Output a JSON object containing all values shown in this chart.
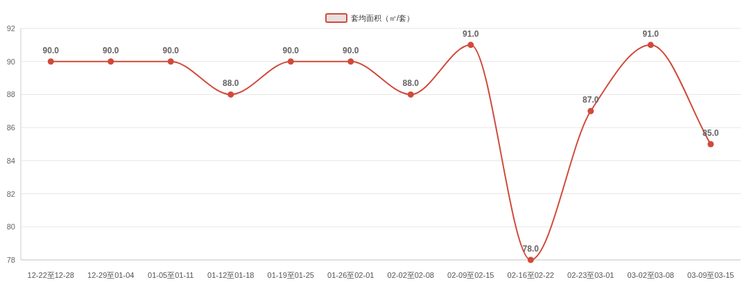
{
  "chart_data": {
    "type": "line",
    "categories": [
      "12-22至12-28",
      "12-29至01-04",
      "01-05至01-11",
      "01-12至01-18",
      "01-19至01-25",
      "01-26至02-01",
      "02-02至02-08",
      "02-09至02-15",
      "02-16至02-22",
      "02-23至03-01",
      "03-02至03-08",
      "03-09至03-15"
    ],
    "series": [
      {
        "name": "套均面积（㎡/套）",
        "color": "#d04a3b",
        "values": [
          90,
          90,
          90,
          88,
          90,
          90,
          88,
          91,
          78,
          87,
          91,
          85
        ],
        "value_labels": [
          "90.0",
          "90.0",
          "90.0",
          "88.0",
          "90.0",
          "90.0",
          "88.0",
          "91.0",
          "78.0",
          "87.0",
          "91.0",
          "85.0"
        ]
      }
    ],
    "ylim": [
      78,
      92
    ],
    "yticks": [
      78,
      80,
      82,
      84,
      86,
      88,
      90,
      92
    ],
    "grid": "y",
    "legend": "top",
    "marker": "circle",
    "line_style": "solid"
  }
}
